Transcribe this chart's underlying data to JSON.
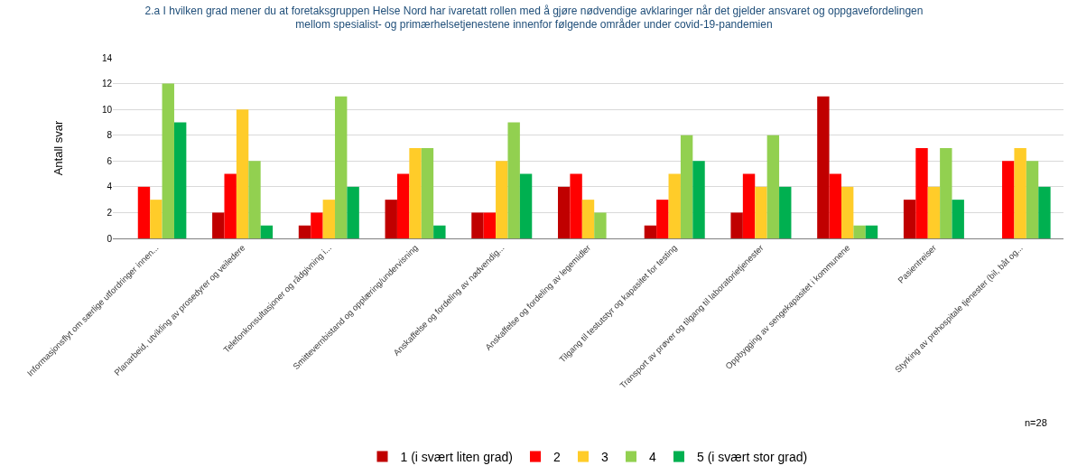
{
  "chart_data": {
    "type": "bar",
    "title": "2.a I hvilken grad mener du at foretaksgruppen Helse Nord har ivaretatt rollen med å gjøre nødvendige avklaringer når det gjelder ansvaret og oppgavefordelingen mellom spesialist- og primærhelsetjenestene innenfor følgende områder under covid-19-pandemien",
    "ylabel": "Antall svar",
    "categories": [
      "Informasjonsflyt om særlige utfordringer innen...",
      "Planarbeid, utvikling av prosedyrer og veiledere",
      "Telefonkonsultasjoner og rådgivning i...",
      "Smittevernbistand og opplæring/undervisning",
      "Anskaffelse og fordeling av nødvendig...",
      "Anskaffelse og fordeling av legemidler",
      "Tilgang til testutstyr og kapasitet for testing",
      "Transport av prøver og tilgang til laboratorietjenester",
      "Oppbygging av sengekapasitet i kommunene",
      "Pasientreiser",
      "Styrking av prehospitale tjenester (bil, båt og..."
    ],
    "series": [
      {
        "name": "1 (i svært liten grad)",
        "color": "#c00000",
        "values": [
          0,
          2,
          1,
          3,
          2,
          4,
          1,
          2,
          11,
          3,
          0
        ]
      },
      {
        "name": "2",
        "color": "#ff0000",
        "values": [
          4,
          5,
          2,
          5,
          2,
          5,
          3,
          5,
          5,
          7,
          6
        ]
      },
      {
        "name": "3",
        "color": "#ffcc29",
        "values": [
          3,
          10,
          3,
          7,
          6,
          3,
          5,
          4,
          4,
          4,
          7
        ]
      },
      {
        "name": "4",
        "color": "#92d050",
        "values": [
          12,
          6,
          11,
          7,
          9,
          2,
          8,
          8,
          1,
          7,
          6
        ]
      },
      {
        "name": "5 (i svært stor grad)",
        "color": "#00b050",
        "values": [
          9,
          1,
          4,
          1,
          5,
          0,
          6,
          4,
          1,
          3,
          4
        ]
      }
    ],
    "ylim": [
      0,
      14
    ],
    "yticks": [
      0,
      2,
      4,
      6,
      8,
      10,
      12,
      14
    ],
    "grid": "y",
    "legend": "bottom",
    "annotations": [
      "n=28"
    ]
  }
}
